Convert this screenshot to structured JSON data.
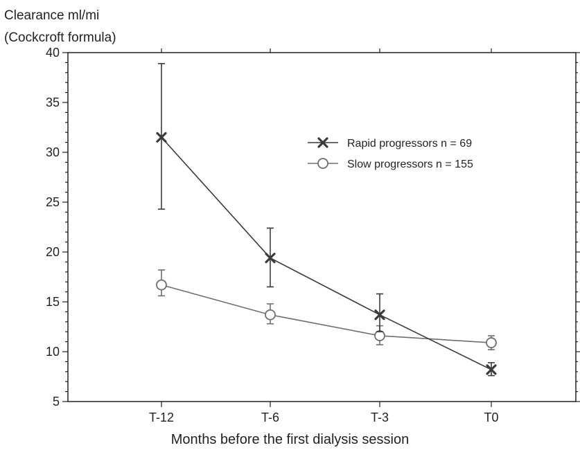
{
  "chart_data": {
    "type": "line",
    "ylabel_lines": [
      "Clearance ml/mi",
      "(Cockcroft formula)"
    ],
    "xlabel": "Months before the first dialysis session",
    "categories": [
      "T-12",
      "T-6",
      "T-3",
      "T0"
    ],
    "ylim": [
      5,
      40
    ],
    "yticks": [
      5,
      10,
      15,
      20,
      25,
      30,
      35,
      40
    ],
    "grid": false,
    "legend_position": "top-right",
    "series": [
      {
        "name": "Rapid progressors n = 69",
        "marker": "x",
        "color": "#3a3a3c",
        "values": [
          31.5,
          19.4,
          13.7,
          8.2
        ],
        "err_low": [
          24.3,
          16.5,
          12.0,
          7.6
        ],
        "err_high": [
          38.9,
          22.4,
          15.8,
          8.9
        ]
      },
      {
        "name": "Slow progressors n = 155",
        "marker": "o",
        "color": "#6d6e71",
        "values": [
          16.7,
          13.7,
          11.6,
          10.9
        ],
        "err_low": [
          15.6,
          12.8,
          10.7,
          10.2
        ],
        "err_high": [
          18.2,
          14.8,
          12.6,
          11.6
        ]
      }
    ]
  }
}
